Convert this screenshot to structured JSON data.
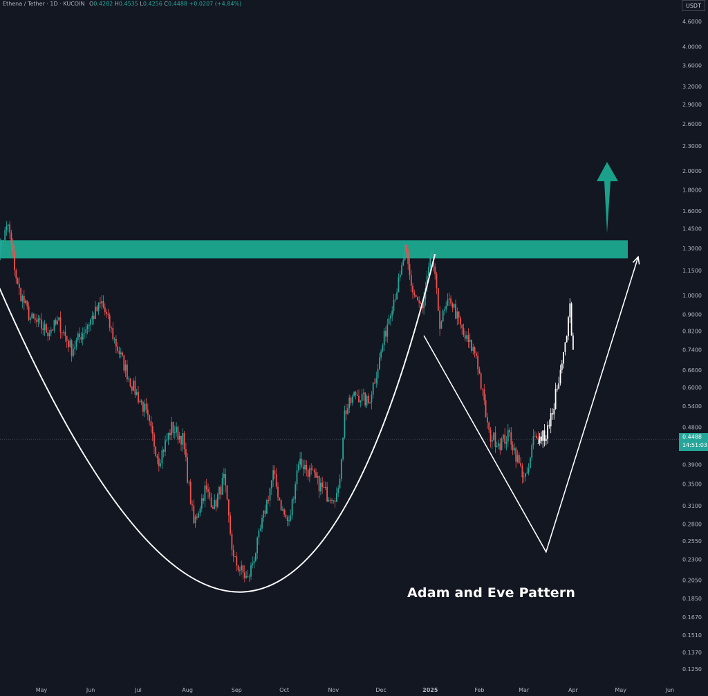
{
  "header": {
    "symbol": "Ethena / Tether · 1D · KUCOIN",
    "o_label": "O",
    "o": "0.4282",
    "h_label": "H",
    "h": "0.4535",
    "l_label": "L",
    "l": "0.4256",
    "c_label": "C",
    "c": "0.4488",
    "change": "+0.0207 (+4.84%)"
  },
  "axis_unit": "USDT",
  "current_price": {
    "price": "0.4488",
    "countdown": "14:51:03"
  },
  "annotation": "Adam and Eve Pattern",
  "colors": {
    "background": "#131722",
    "up": "#26a69a",
    "down": "#ef5350",
    "zone": "#1ba08a",
    "projection": "#ffffff",
    "text": "#d1d4dc"
  },
  "chart_data": {
    "type": "candlestick",
    "title": "",
    "xlabel": "",
    "ylabel": "",
    "y_scale": "log",
    "ylim": [
      0.118,
      4.9
    ],
    "x_tick_labels": [
      "May",
      "Jun",
      "Jul",
      "Aug",
      "Sep",
      "Oct",
      "Nov",
      "Dec",
      "2025",
      "Feb",
      "Mar",
      "Apr",
      "May",
      "Jun"
    ],
    "y_tick_labels": [
      "4.6000",
      "4.0000",
      "3.6000",
      "3.2000",
      "2.9000",
      "2.6000",
      "2.3000",
      "2.0000",
      "1.8000",
      "1.6000",
      "1.4500",
      "1.3000",
      "1.1500",
      "1.0000",
      "0.9000",
      "0.8200",
      "0.7400",
      "0.6600",
      "0.6000",
      "0.5400",
      "0.4800",
      "0.3900",
      "0.3500",
      "0.3100",
      "0.2800",
      "0.2550",
      "0.2300",
      "0.2050",
      "0.1850",
      "0.1670",
      "0.1510",
      "0.1370",
      "0.1250"
    ],
    "price_path": [
      [
        "2024-04-01",
        1.2
      ],
      [
        "2024-04-10",
        1.48
      ],
      [
        "2024-04-16",
        1.05
      ],
      [
        "2024-04-24",
        0.88
      ],
      [
        "2024-05-05",
        0.82
      ],
      [
        "2024-05-12",
        0.86
      ],
      [
        "2024-05-20",
        0.74
      ],
      [
        "2024-05-30",
        0.85
      ],
      [
        "2024-06-08",
        0.96
      ],
      [
        "2024-06-16",
        0.78
      ],
      [
        "2024-06-26",
        0.62
      ],
      [
        "2024-07-05",
        0.53
      ],
      [
        "2024-07-14",
        0.4
      ],
      [
        "2024-07-22",
        0.48
      ],
      [
        "2024-07-29",
        0.45
      ],
      [
        "2024-08-05",
        0.28
      ],
      [
        "2024-08-12",
        0.34
      ],
      [
        "2024-08-18",
        0.31
      ],
      [
        "2024-08-24",
        0.36
      ],
      [
        "2024-08-30",
        0.23
      ],
      [
        "2024-09-08",
        0.205
      ],
      [
        "2024-09-14",
        0.25
      ],
      [
        "2024-09-24",
        0.37
      ],
      [
        "2024-09-30",
        0.3
      ],
      [
        "2024-10-04",
        0.28
      ],
      [
        "2024-10-10",
        0.4
      ],
      [
        "2024-10-18",
        0.37
      ],
      [
        "2024-10-28",
        0.33
      ],
      [
        "2024-11-04",
        0.33
      ],
      [
        "2024-11-08",
        0.52
      ],
      [
        "2024-11-15",
        0.58
      ],
      [
        "2024-11-23",
        0.55
      ],
      [
        "2024-11-30",
        0.7
      ],
      [
        "2024-12-07",
        0.93
      ],
      [
        "2024-12-13",
        1.1
      ],
      [
        "2024-12-16",
        1.29
      ],
      [
        "2024-12-20",
        1.05
      ],
      [
        "2024-12-27",
        0.92
      ],
      [
        "2025-01-02",
        1.27
      ],
      [
        "2025-01-07",
        0.86
      ],
      [
        "2025-01-14",
        0.98
      ],
      [
        "2025-01-22",
        0.8
      ],
      [
        "2025-01-30",
        0.72
      ],
      [
        "2025-02-07",
        0.46
      ],
      [
        "2025-02-14",
        0.44
      ],
      [
        "2025-02-20",
        0.46
      ],
      [
        "2025-02-27",
        0.38
      ],
      [
        "2025-03-03",
        0.36
      ],
      [
        "2025-03-07",
        0.45
      ],
      [
        "2025-03-10",
        0.4488
      ]
    ],
    "projection_path": [
      [
        "2025-03-10",
        0.4488
      ],
      [
        "2025-03-15",
        0.46
      ],
      [
        "2025-03-18",
        0.5
      ],
      [
        "2025-03-21",
        0.58
      ],
      [
        "2025-03-24",
        0.64
      ],
      [
        "2025-03-27",
        0.76
      ],
      [
        "2025-03-29",
        0.86
      ],
      [
        "2025-03-30",
        0.94
      ],
      [
        "2025-04-01",
        0.74
      ]
    ],
    "resistance_zone": [
      1.23,
      1.36
    ],
    "adam_curve": [
      [
        "2024-04-01",
        1.12
      ],
      [
        "2024-09-05",
        0.192
      ],
      [
        "2025-01-04",
        1.26
      ]
    ],
    "eve_v": [
      [
        "2024-12-28",
        0.8
      ],
      [
        "2025-03-15",
        0.24
      ],
      [
        "2025-05-12",
        1.24
      ]
    ]
  }
}
